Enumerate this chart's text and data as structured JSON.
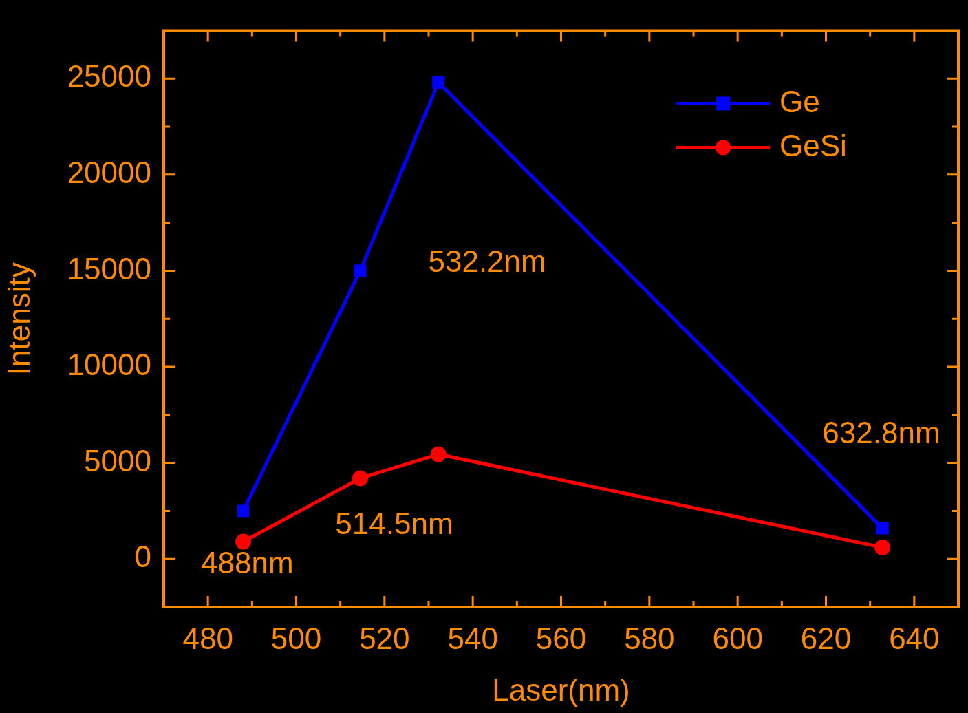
{
  "chart_data": {
    "type": "line",
    "xlabel": "Laser(nm)",
    "ylabel": "Intensity",
    "x": [
      488,
      514.5,
      532.2,
      632.8
    ],
    "series": [
      {
        "name": "Ge",
        "color": "#0000ff",
        "marker": "square",
        "values": [
          2500,
          15000,
          24800,
          1600
        ]
      },
      {
        "name": "GeSi",
        "color": "#ff0000",
        "marker": "circle",
        "values": [
          900,
          4200,
          5450,
          600
        ]
      }
    ],
    "xlim": [
      470,
      650
    ],
    "xticks": [
      480,
      500,
      520,
      540,
      560,
      580,
      600,
      620,
      640
    ],
    "ylim": [
      -2500,
      27500
    ],
    "yticks": [
      0,
      5000,
      10000,
      15000,
      20000,
      25000
    ],
    "annotations": [
      "488nm",
      "514.5nm",
      "532.2nm",
      "632.8nm"
    ],
    "grid": false,
    "legend": "top right",
    "line_style": "solid"
  }
}
